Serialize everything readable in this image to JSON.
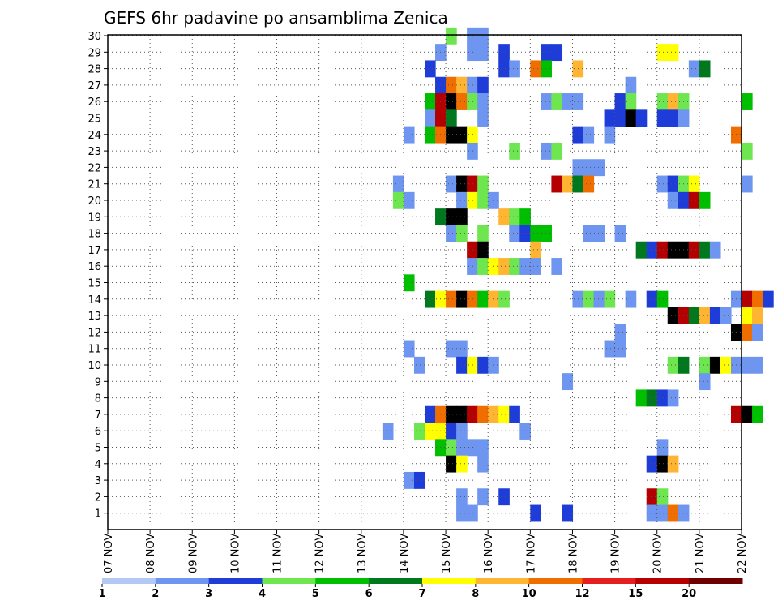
{
  "chart_data": {
    "type": "heatmap",
    "title": "GEFS 6hr padavine po ansamblima Zenica",
    "xlabel": "",
    "ylabel": "",
    "x_ticks": [
      "07 NOV",
      "08 NOV",
      "09 NOV",
      "10 NOV",
      "11 NOV",
      "12 NOV",
      "13 NOV",
      "14 NOV",
      "15 NOV",
      "16 NOV",
      "17 NOV",
      "18 NOV",
      "19 NOV",
      "20 NOV",
      "21 NOV",
      "22 NOV"
    ],
    "y_ticks": [
      "1",
      "2",
      "3",
      "4",
      "5",
      "6",
      "7",
      "8",
      "9",
      "10",
      "11",
      "12",
      "13",
      "14",
      "15",
      "16",
      "17",
      "18",
      "19",
      "20",
      "21",
      "22",
      "23",
      "24",
      "25",
      "26",
      "27",
      "28",
      "29",
      "30"
    ],
    "time_steps_per_day": 4,
    "members": 30,
    "grid": true,
    "legend": {
      "placement": "bottom",
      "labels": [
        "1",
        "2",
        "3",
        "4",
        "5",
        "6",
        "7",
        "8",
        "10",
        "12",
        "15",
        "20"
      ],
      "colors": [
        "#b4c8f5",
        "#6e96f0",
        "#1e3cd7",
        "#6ee650",
        "#00be00",
        "#00781e",
        "#ffff00",
        "#ffb432",
        "#f06e00",
        "#e61e1e",
        "#b40000",
        "#6e0000"
      ]
    },
    "cells": [
      [
        30,
        15.0,
        3
      ],
      [
        30,
        15.5,
        1
      ],
      [
        30,
        15.75,
        1
      ],
      [
        29,
        14.75,
        1
      ],
      [
        29,
        15.5,
        1
      ],
      [
        29,
        15.75,
        1
      ],
      [
        29,
        16.25,
        2
      ],
      [
        29,
        17.25,
        2
      ],
      [
        29,
        17.5,
        2
      ],
      [
        29,
        20.0,
        6
      ],
      [
        29,
        20.25,
        6
      ],
      [
        28,
        14.5,
        2
      ],
      [
        28,
        16.25,
        2
      ],
      [
        28,
        16.5,
        1
      ],
      [
        28,
        17.0,
        8
      ],
      [
        28,
        17.25,
        4
      ],
      [
        28,
        18.0,
        7
      ],
      [
        28,
        20.75,
        1
      ],
      [
        28,
        21.0,
        5
      ],
      [
        27,
        14.75,
        2
      ],
      [
        27,
        15.0,
        8
      ],
      [
        27,
        15.25,
        7
      ],
      [
        27,
        15.5,
        1
      ],
      [
        27,
        15.75,
        2
      ],
      [
        27,
        19.25,
        1
      ],
      [
        26,
        14.5,
        4
      ],
      [
        26,
        14.75,
        10
      ],
      [
        26,
        15.0,
        12
      ],
      [
        26,
        15.25,
        8
      ],
      [
        26,
        15.5,
        3
      ],
      [
        26,
        15.75,
        1
      ],
      [
        26,
        17.25,
        1
      ],
      [
        26,
        17.5,
        3
      ],
      [
        26,
        17.75,
        1
      ],
      [
        26,
        18.0,
        1
      ],
      [
        26,
        19.0,
        2
      ],
      [
        26,
        19.25,
        3
      ],
      [
        26,
        20.0,
        3
      ],
      [
        26,
        20.25,
        7
      ],
      [
        26,
        20.5,
        3
      ],
      [
        26,
        22.0,
        4
      ],
      [
        25,
        14.5,
        1
      ],
      [
        25,
        14.75,
        10
      ],
      [
        25,
        15.0,
        5
      ],
      [
        25,
        15.75,
        1
      ],
      [
        25,
        18.75,
        2
      ],
      [
        25,
        19.0,
        2
      ],
      [
        25,
        19.25,
        15
      ],
      [
        25,
        19.5,
        2
      ],
      [
        25,
        20.0,
        2
      ],
      [
        25,
        20.25,
        2
      ],
      [
        25,
        20.5,
        1
      ],
      [
        24,
        14.0,
        1
      ],
      [
        24,
        14.5,
        4
      ],
      [
        24,
        14.75,
        8
      ],
      [
        24,
        15.0,
        12
      ],
      [
        24,
        15.25,
        20
      ],
      [
        24,
        15.5,
        6
      ],
      [
        24,
        18.0,
        2
      ],
      [
        24,
        18.25,
        1
      ],
      [
        24,
        18.75,
        1
      ],
      [
        24,
        21.75,
        8
      ],
      [
        23,
        15.5,
        1
      ],
      [
        23,
        16.5,
        3
      ],
      [
        23,
        17.25,
        1
      ],
      [
        23,
        17.5,
        3
      ],
      [
        23,
        22.0,
        3
      ],
      [
        22,
        18.0,
        1
      ],
      [
        22,
        18.25,
        1
      ],
      [
        22,
        18.5,
        1
      ],
      [
        21,
        13.75,
        1
      ],
      [
        21,
        15.0,
        1
      ],
      [
        21,
        15.25,
        15
      ],
      [
        21,
        15.5,
        10
      ],
      [
        21,
        15.75,
        3
      ],
      [
        21,
        17.5,
        10
      ],
      [
        21,
        17.75,
        7
      ],
      [
        21,
        18.0,
        5
      ],
      [
        21,
        18.25,
        8
      ],
      [
        21,
        20.0,
        1
      ],
      [
        21,
        20.25,
        2
      ],
      [
        21,
        20.5,
        3
      ],
      [
        21,
        20.75,
        6
      ],
      [
        21,
        22.0,
        1
      ],
      [
        20,
        13.75,
        3
      ],
      [
        20,
        14.0,
        1
      ],
      [
        20,
        15.25,
        1
      ],
      [
        20,
        15.5,
        6
      ],
      [
        20,
        15.75,
        3
      ],
      [
        20,
        16.0,
        1
      ],
      [
        20,
        20.25,
        1
      ],
      [
        20,
        20.5,
        2
      ],
      [
        20,
        20.75,
        10
      ],
      [
        20,
        21.0,
        4
      ],
      [
        19,
        14.75,
        5
      ],
      [
        19,
        15.0,
        15
      ],
      [
        19,
        15.25,
        20
      ],
      [
        19,
        16.25,
        7
      ],
      [
        19,
        16.5,
        3
      ],
      [
        19,
        16.75,
        4
      ],
      [
        18,
        15.0,
        1
      ],
      [
        18,
        15.25,
        3
      ],
      [
        18,
        15.75,
        3
      ],
      [
        18,
        16.5,
        1
      ],
      [
        18,
        16.75,
        2
      ],
      [
        18,
        17.0,
        4
      ],
      [
        18,
        17.25,
        4
      ],
      [
        18,
        18.25,
        1
      ],
      [
        18,
        18.5,
        1
      ],
      [
        18,
        19.0,
        1
      ],
      [
        17,
        15.5,
        10
      ],
      [
        17,
        15.75,
        15
      ],
      [
        17,
        17.0,
        7
      ],
      [
        17,
        19.5,
        5
      ],
      [
        17,
        19.75,
        2
      ],
      [
        17,
        20.0,
        10
      ],
      [
        17,
        20.25,
        12
      ],
      [
        17,
        20.5,
        15
      ],
      [
        17,
        20.75,
        10
      ],
      [
        17,
        21.0,
        5
      ],
      [
        17,
        21.25,
        1
      ],
      [
        16,
        15.5,
        1
      ],
      [
        16,
        15.75,
        3
      ],
      [
        16,
        16.0,
        6
      ],
      [
        16,
        16.25,
        7
      ],
      [
        16,
        16.5,
        3
      ],
      [
        16,
        16.75,
        1
      ],
      [
        16,
        17.0,
        1
      ],
      [
        16,
        17.5,
        1
      ],
      [
        15,
        14.0,
        4
      ],
      [
        14,
        14.5,
        5
      ],
      [
        14,
        14.75,
        6
      ],
      [
        14,
        15.0,
        8
      ],
      [
        14,
        15.25,
        12
      ],
      [
        14,
        15.5,
        8
      ],
      [
        14,
        15.75,
        4
      ],
      [
        14,
        16.0,
        7
      ],
      [
        14,
        16.25,
        3
      ],
      [
        14,
        18.0,
        1
      ],
      [
        14,
        18.25,
        3
      ],
      [
        14,
        18.5,
        1
      ],
      [
        14,
        18.75,
        3
      ],
      [
        14,
        19.25,
        1
      ],
      [
        14,
        19.75,
        2
      ],
      [
        14,
        20.0,
        4
      ],
      [
        14,
        21.75,
        1
      ],
      [
        14,
        22.0,
        10
      ],
      [
        14,
        22.25,
        8
      ],
      [
        14,
        22.5,
        2
      ],
      [
        13,
        20.25,
        12
      ],
      [
        13,
        20.5,
        10
      ],
      [
        13,
        20.75,
        5
      ],
      [
        13,
        21.0,
        7
      ],
      [
        13,
        21.25,
        2
      ],
      [
        13,
        21.5,
        1
      ],
      [
        13,
        22.0,
        6
      ],
      [
        13,
        22.25,
        7
      ],
      [
        12,
        19.0,
        1
      ],
      [
        12,
        21.75,
        15
      ],
      [
        12,
        22.0,
        8
      ],
      [
        12,
        22.25,
        1
      ],
      [
        11,
        14.0,
        1
      ],
      [
        11,
        15.0,
        1
      ],
      [
        11,
        15.25,
        1
      ],
      [
        11,
        18.75,
        1
      ],
      [
        11,
        19.0,
        1
      ],
      [
        10,
        14.25,
        1
      ],
      [
        10,
        15.25,
        2
      ],
      [
        10,
        15.5,
        6
      ],
      [
        10,
        15.75,
        2
      ],
      [
        10,
        16.0,
        1
      ],
      [
        10,
        20.25,
        3
      ],
      [
        10,
        20.5,
        5
      ],
      [
        10,
        21.0,
        3
      ],
      [
        10,
        21.25,
        15
      ],
      [
        10,
        21.5,
        6
      ],
      [
        10,
        21.75,
        1
      ],
      [
        10,
        22.0,
        1
      ],
      [
        10,
        22.25,
        1
      ],
      [
        9,
        17.75,
        1
      ],
      [
        9,
        21.0,
        1
      ],
      [
        8,
        19.5,
        4
      ],
      [
        8,
        19.75,
        5
      ],
      [
        8,
        20.0,
        2
      ],
      [
        8,
        20.25,
        1
      ],
      [
        7,
        14.5,
        2
      ],
      [
        7,
        14.75,
        8
      ],
      [
        7,
        15.0,
        12
      ],
      [
        7,
        15.25,
        12
      ],
      [
        7,
        15.5,
        10
      ],
      [
        7,
        15.75,
        8
      ],
      [
        7,
        16.0,
        7
      ],
      [
        7,
        16.25,
        6
      ],
      [
        7,
        16.5,
        2
      ],
      [
        7,
        21.75,
        10
      ],
      [
        7,
        22.0,
        20
      ],
      [
        7,
        22.25,
        4
      ],
      [
        6,
        13.5,
        1
      ],
      [
        6,
        14.25,
        3
      ],
      [
        6,
        14.5,
        6
      ],
      [
        6,
        14.75,
        6
      ],
      [
        6,
        15.0,
        2
      ],
      [
        6,
        15.25,
        1
      ],
      [
        6,
        16.75,
        1
      ],
      [
        5,
        14.75,
        4
      ],
      [
        5,
        15.0,
        3
      ],
      [
        5,
        15.25,
        1
      ],
      [
        5,
        15.5,
        1
      ],
      [
        5,
        15.75,
        1
      ],
      [
        5,
        20.0,
        1
      ],
      [
        4,
        15.0,
        15
      ],
      [
        4,
        15.25,
        6
      ],
      [
        4,
        15.75,
        1
      ],
      [
        4,
        19.75,
        2
      ],
      [
        4,
        20.0,
        20
      ],
      [
        4,
        20.25,
        7
      ],
      [
        3,
        14.0,
        1
      ],
      [
        3,
        14.25,
        2
      ],
      [
        2,
        15.25,
        1
      ],
      [
        2,
        15.75,
        1
      ],
      [
        2,
        16.25,
        2
      ],
      [
        2,
        19.75,
        10
      ],
      [
        2,
        20.0,
        3
      ],
      [
        1,
        15.25,
        1
      ],
      [
        1,
        15.5,
        1
      ],
      [
        1,
        17.0,
        2
      ],
      [
        1,
        17.75,
        2
      ],
      [
        1,
        19.75,
        1
      ],
      [
        1,
        20.0,
        1
      ],
      [
        1,
        20.25,
        8
      ],
      [
        1,
        20.5,
        1
      ]
    ]
  }
}
